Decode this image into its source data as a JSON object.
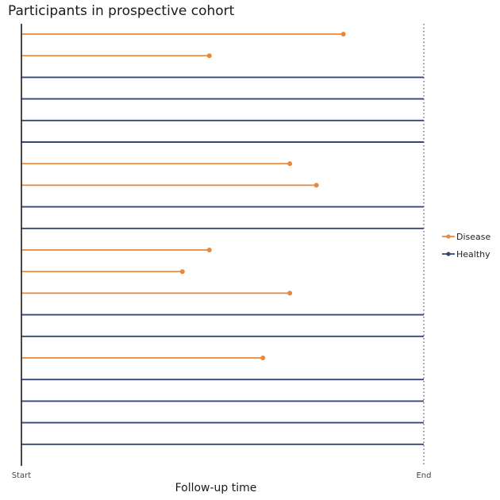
{
  "chart_data": {
    "type": "line",
    "title": "Participants in prospective cohort",
    "xlabel": "Follow-up time",
    "ylabel": "",
    "x_ticks": [
      "Start",
      "End"
    ],
    "xlim": [
      0,
      1
    ],
    "grid": false,
    "legend_position": "right",
    "colors": {
      "Disease": "#e8883a",
      "Healthy": "#34497a"
    },
    "series": [
      {
        "name": "Disease",
        "marker": "point"
      },
      {
        "name": "Healthy",
        "marker": "none"
      }
    ],
    "participants": [
      {
        "status": "Disease",
        "end": 0.8
      },
      {
        "status": "Disease",
        "end": 0.467
      },
      {
        "status": "Healthy",
        "end": 1.0
      },
      {
        "status": "Healthy",
        "end": 1.0
      },
      {
        "status": "Healthy",
        "end": 1.0
      },
      {
        "status": "Healthy",
        "end": 1.0
      },
      {
        "status": "Disease",
        "end": 0.667
      },
      {
        "status": "Disease",
        "end": 0.733
      },
      {
        "status": "Healthy",
        "end": 1.0
      },
      {
        "status": "Healthy",
        "end": 1.0
      },
      {
        "status": "Disease",
        "end": 0.467
      },
      {
        "status": "Disease",
        "end": 0.4
      },
      {
        "status": "Disease",
        "end": 0.667
      },
      {
        "status": "Healthy",
        "end": 1.0
      },
      {
        "status": "Healthy",
        "end": 1.0
      },
      {
        "status": "Disease",
        "end": 0.6
      },
      {
        "status": "Healthy",
        "end": 1.0
      },
      {
        "status": "Healthy",
        "end": 1.0
      },
      {
        "status": "Healthy",
        "end": 1.0
      },
      {
        "status": "Healthy",
        "end": 1.0
      }
    ]
  }
}
